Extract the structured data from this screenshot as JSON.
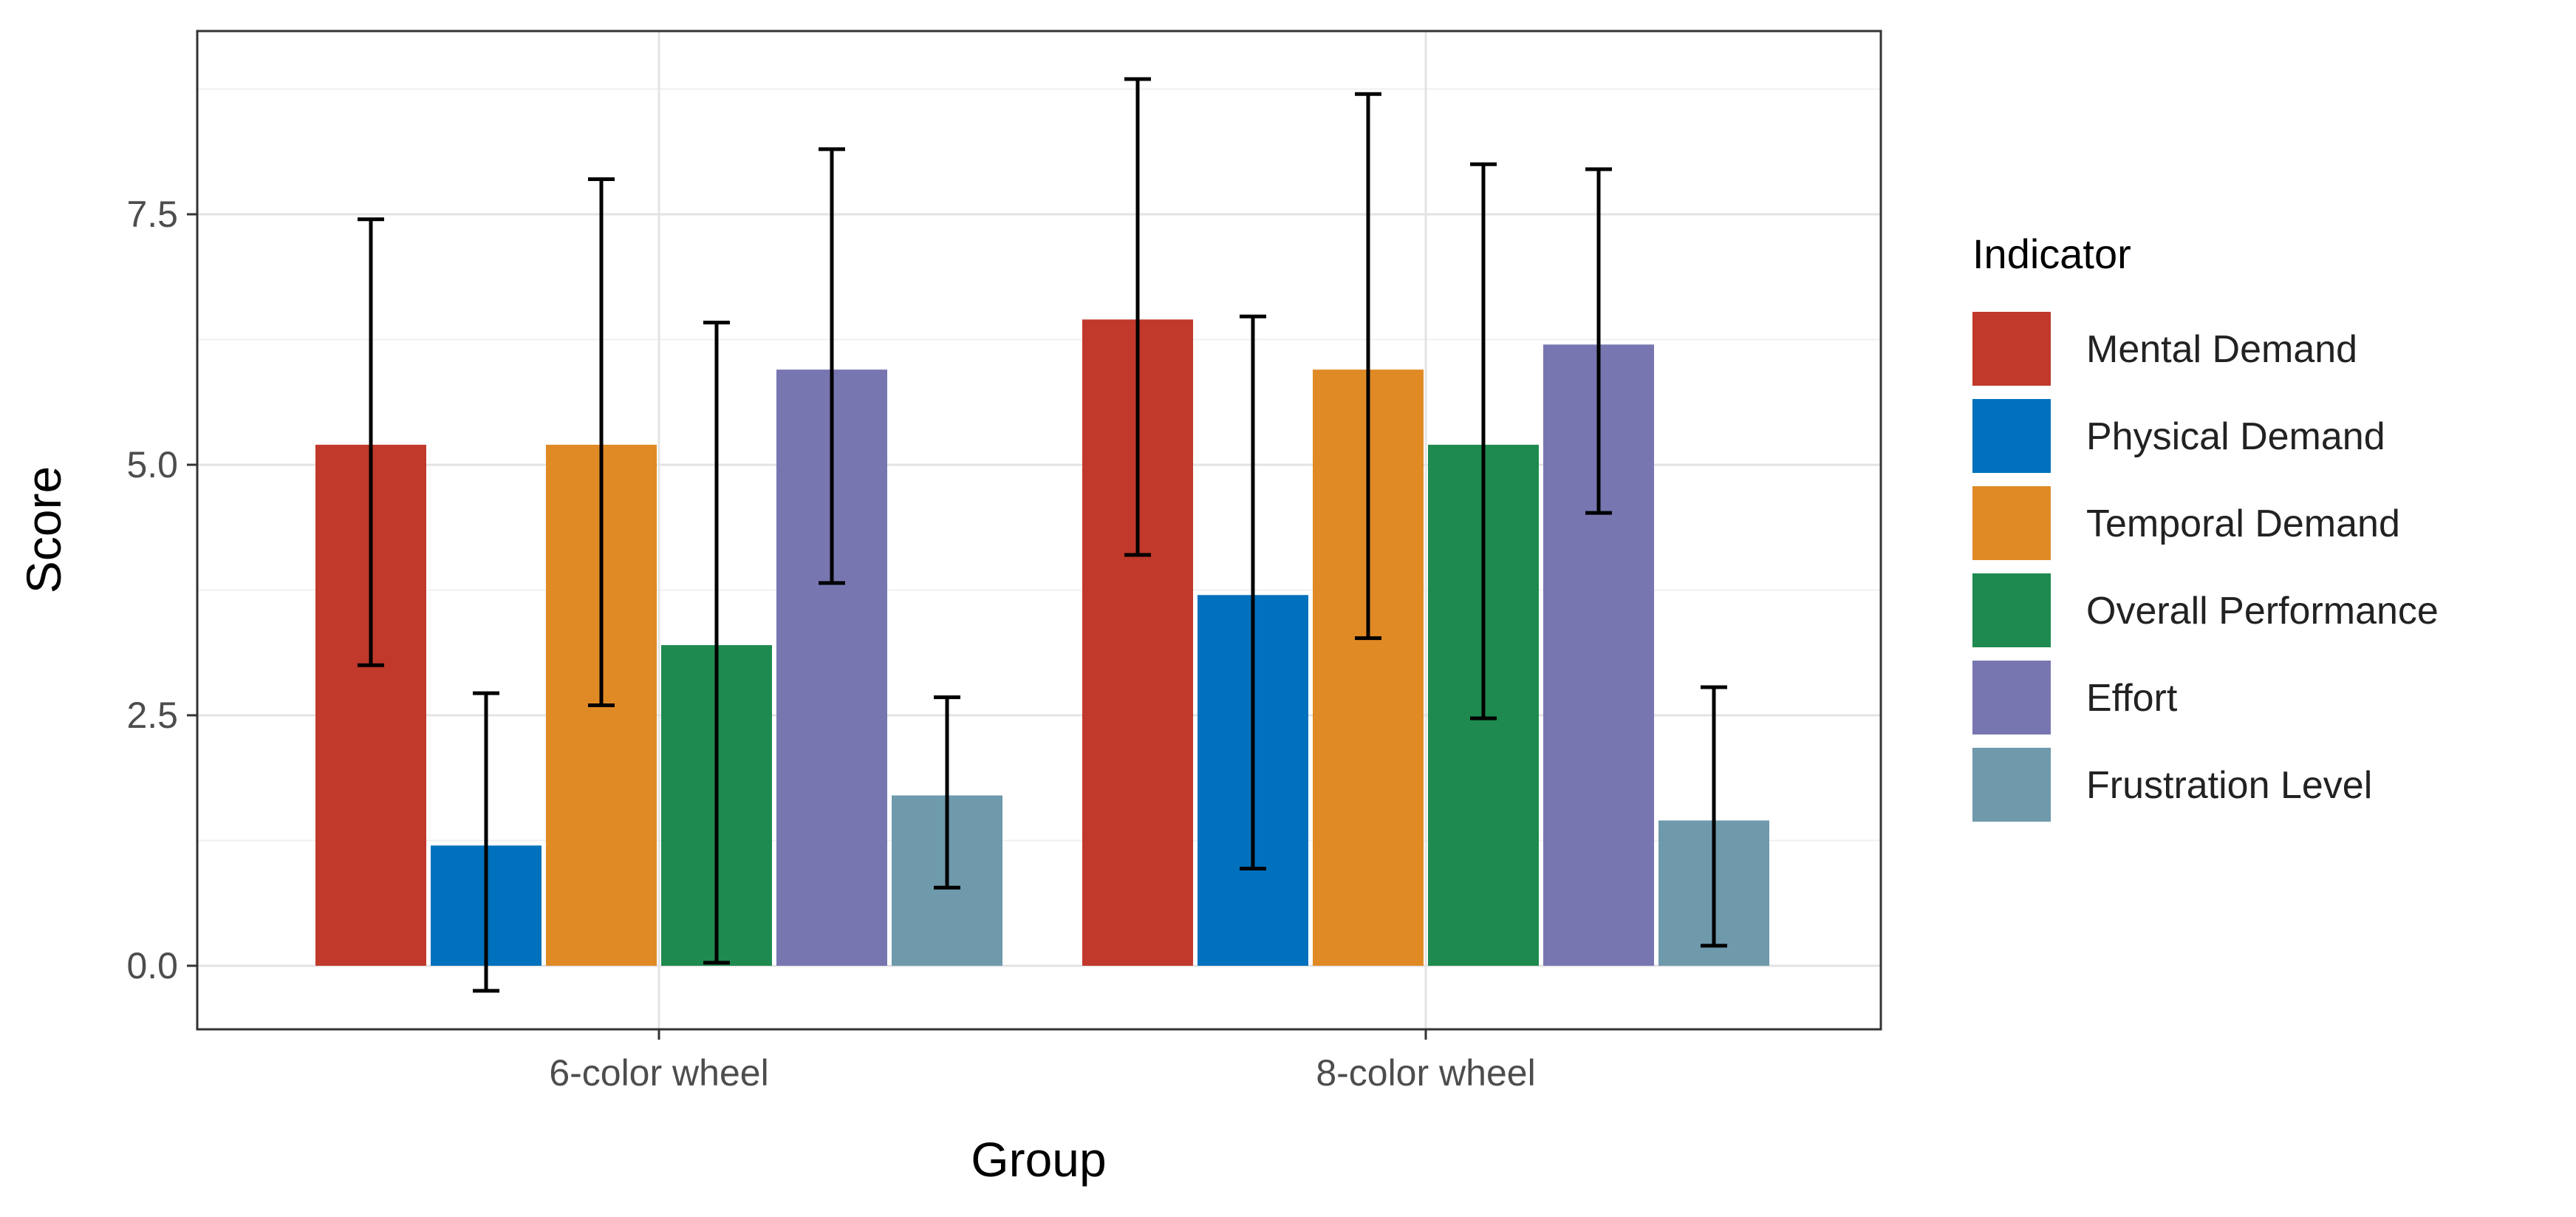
{
  "chart_data": {
    "type": "bar",
    "title": "",
    "xlabel": "Group",
    "ylabel": "Score",
    "ylim": [
      -0.7,
      9.4
    ],
    "yticks": [
      0.0,
      2.5,
      5.0,
      7.5
    ],
    "ytick_labels": [
      "0.0",
      "2.5",
      "5.0",
      "7.5"
    ],
    "grid": true,
    "legend_title": "Indicator",
    "legend_position": "right",
    "categories": [
      "6-color wheel",
      "8-color wheel"
    ],
    "series": [
      {
        "name": "Mental Demand",
        "color": "#C0392B",
        "values": [
          5.2,
          6.45
        ],
        "err_low": [
          3.0,
          4.1
        ],
        "err_high": [
          7.45,
          8.85
        ]
      },
      {
        "name": "Physical Demand",
        "color": "#0071BC",
        "values": [
          1.2,
          3.7
        ],
        "err_low": [
          -0.25,
          0.97
        ],
        "err_high": [
          2.72,
          6.48
        ]
      },
      {
        "name": "Temporal Demand",
        "color": "#E08A25",
        "values": [
          5.2,
          5.95
        ],
        "err_low": [
          2.6,
          3.27
        ],
        "err_high": [
          7.85,
          8.7
        ]
      },
      {
        "name": "Overall Performance",
        "color": "#1E8A4F",
        "values": [
          3.2,
          5.2
        ],
        "err_low": [
          0.03,
          2.47
        ],
        "err_high": [
          6.42,
          8.0
        ]
      },
      {
        "name": "Effort",
        "color": "#7876B1",
        "values": [
          5.95,
          6.2
        ],
        "err_low": [
          3.82,
          4.52
        ],
        "err_high": [
          8.15,
          7.95
        ]
      },
      {
        "name": "Frustration Level",
        "color": "#6E9AAC",
        "values": [
          1.7,
          1.45
        ],
        "err_low": [
          0.78,
          0.2
        ],
        "err_high": [
          2.68,
          2.78
        ]
      }
    ]
  }
}
